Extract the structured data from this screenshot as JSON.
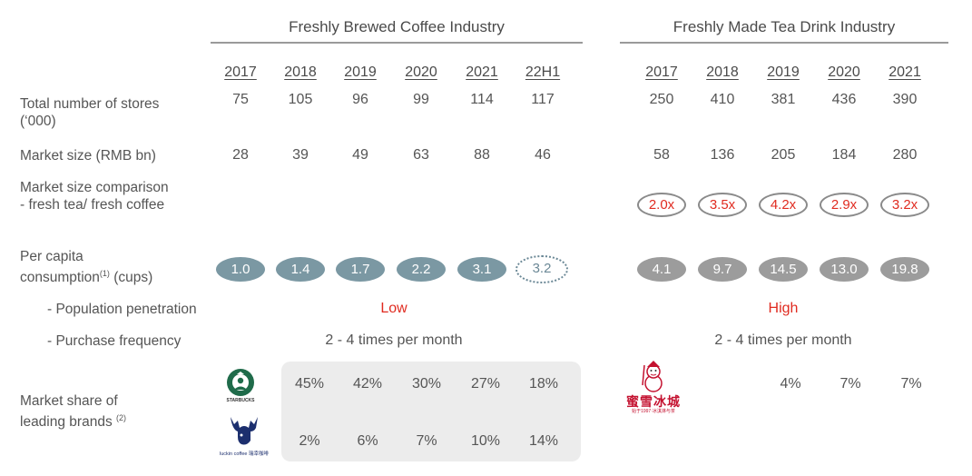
{
  "headers": {
    "coffee": "Freshly Brewed Coffee Industry",
    "tea": "Freshly Made Tea Drink Industry"
  },
  "coffee_years": [
    "2017",
    "2018",
    "2019",
    "2020",
    "2021",
    "22H1"
  ],
  "tea_years": [
    "2017",
    "2018",
    "2019",
    "2020",
    "2021"
  ],
  "row_labels": {
    "stores_line1": "Total number of stores",
    "stores_line2": "(‘000)",
    "market_size": "Market size (RMB bn)",
    "comparison_line1": "Market size comparison",
    "comparison_line2": "- fresh tea/ fresh coffee",
    "per_capita_line1": "Per capita",
    "per_capita_pre": "consumption",
    "per_capita_sup": "(1)",
    "per_capita_post": " (cups)",
    "penetration": "- Population penetration",
    "frequency": "- Purchase frequency",
    "share_line1": "Market share of",
    "share_line2": "leading brands ",
    "share_sup": "(2)"
  },
  "coffee": {
    "stores": [
      "75",
      "105",
      "96",
      "99",
      "114",
      "117"
    ],
    "market_size": [
      "28",
      "39",
      "49",
      "63",
      "88",
      "46"
    ],
    "per_capita": [
      "1.0",
      "1.4",
      "1.7",
      "2.2",
      "3.1",
      "3.2"
    ],
    "penetration": "Low",
    "frequency": "2 - 4 times per month",
    "starbucks_share": [
      "45%",
      "42%",
      "30%",
      "27%",
      "18%"
    ],
    "luckin_share": [
      "2%",
      "6%",
      "7%",
      "10%",
      "14%"
    ]
  },
  "tea": {
    "stores": [
      "250",
      "410",
      "381",
      "436",
      "390"
    ],
    "market_size": [
      "58",
      "136",
      "205",
      "184",
      "280"
    ],
    "comparison": [
      "2.0x",
      "3.5x",
      "4.2x",
      "2.9x",
      "3.2x"
    ],
    "per_capita": [
      "4.1",
      "9.7",
      "14.5",
      "13.0",
      "19.8"
    ],
    "penetration": "High",
    "frequency": "2 - 4 times per month",
    "mixue_share": [
      "4%",
      "7%",
      "7%"
    ]
  },
  "logos": {
    "starbucks": "STARBUCKS",
    "luckin": "luckin coffee 瑞幸咖啡",
    "mixue": "蜜雪冰城",
    "mixue_sub": "始于1997·冰淇淋与茶"
  },
  "colors": {
    "red": "#e02b20",
    "starbucks_pill": "#7b98a3",
    "tea_pill": "#9c9c9c",
    "box": "#ececec"
  }
}
